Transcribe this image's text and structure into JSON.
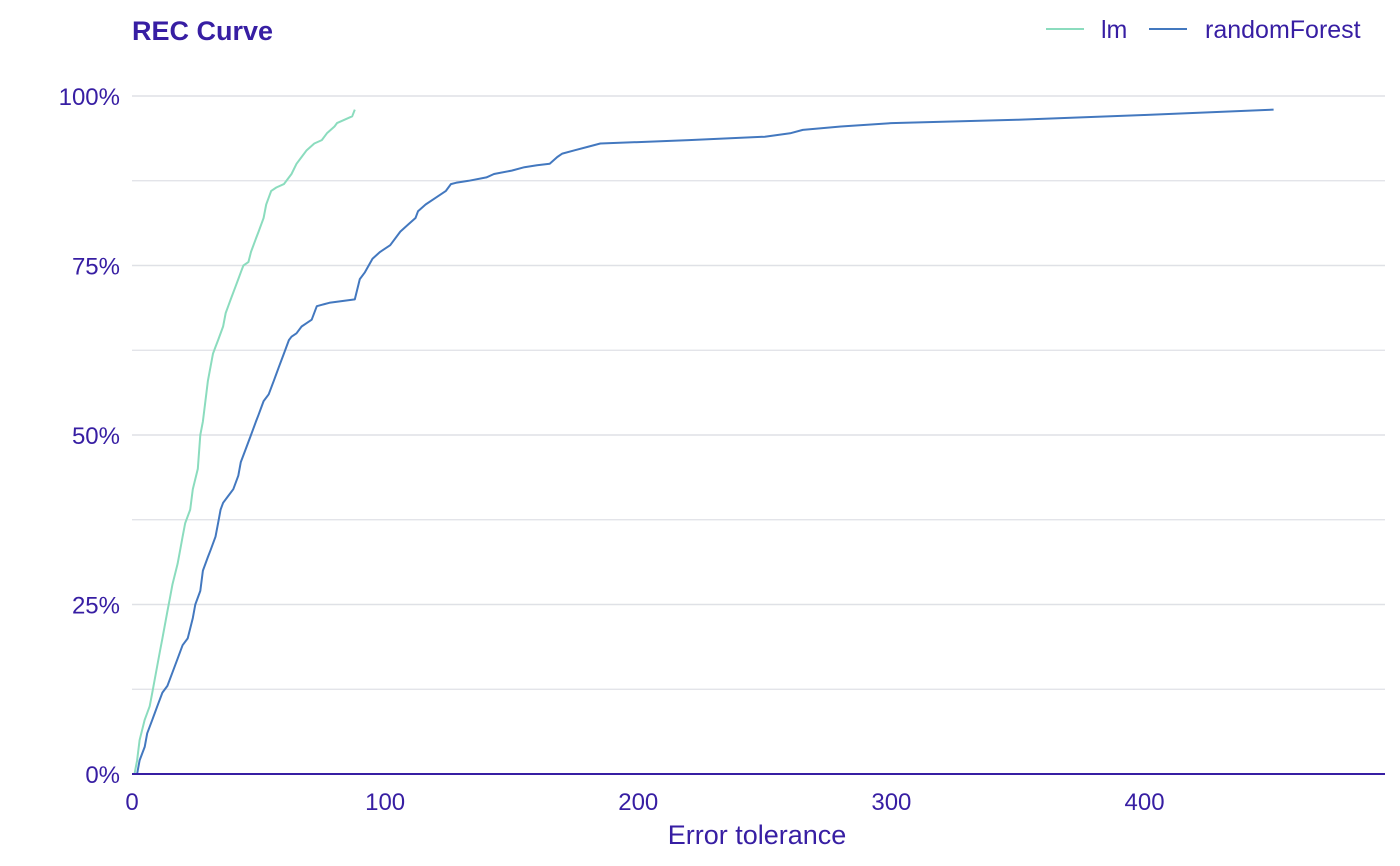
{
  "chart_data": {
    "type": "line",
    "title": "REC Curve",
    "xlabel": "Error tolerance",
    "ylabel": "",
    "xlim": [
      0,
      495
    ],
    "ylim": [
      0,
      1
    ],
    "x_ticks": [
      0,
      100,
      200,
      300,
      400
    ],
    "x_tick_labels": [
      "0",
      "100",
      "200",
      "300",
      "400"
    ],
    "y_ticks": [
      0,
      0.25,
      0.5,
      0.75,
      1
    ],
    "y_tick_labels": [
      "0%",
      "25%",
      "50%",
      "75%",
      "100%"
    ],
    "grid": "horizontal",
    "legend_position": "top-right",
    "colors": {
      "text": "#371ea3",
      "grid": "#dfe1e6",
      "axis": "#371ea3",
      "lm": "#8bdcbe",
      "randomForest": "#4378bf"
    },
    "series": [
      {
        "name": "lm",
        "color": "#8bdcbe",
        "x": [
          1,
          2,
          3,
          5,
          7,
          8,
          10,
          11,
          12,
          14,
          15,
          16,
          18,
          19,
          20,
          21,
          23,
          24,
          26,
          27,
          28,
          29,
          30,
          32,
          33,
          34,
          36,
          37,
          38,
          39,
          41,
          42,
          43,
          44,
          46,
          47,
          49,
          50,
          51,
          52,
          53,
          54,
          55,
          57,
          60,
          63,
          65,
          67,
          69,
          72,
          75,
          77,
          80,
          81,
          84,
          87,
          88
        ],
        "y": [
          0.0,
          0.02,
          0.05,
          0.08,
          0.1,
          0.12,
          0.16,
          0.18,
          0.2,
          0.24,
          0.26,
          0.28,
          0.31,
          0.33,
          0.35,
          0.37,
          0.39,
          0.42,
          0.45,
          0.5,
          0.52,
          0.55,
          0.58,
          0.62,
          0.63,
          0.64,
          0.66,
          0.68,
          0.69,
          0.7,
          0.72,
          0.73,
          0.74,
          0.75,
          0.755,
          0.77,
          0.79,
          0.8,
          0.81,
          0.82,
          0.84,
          0.85,
          0.86,
          0.865,
          0.87,
          0.885,
          0.9,
          0.91,
          0.92,
          0.93,
          0.935,
          0.945,
          0.955,
          0.96,
          0.965,
          0.97,
          0.98
        ]
      },
      {
        "name": "randomForest",
        "color": "#4378bf",
        "x": [
          2,
          3,
          5,
          6,
          8,
          9,
          10,
          12,
          14,
          16,
          18,
          20,
          22,
          24,
          25,
          27,
          28,
          30,
          31,
          33,
          34,
          35,
          36,
          38,
          40,
          42,
          43,
          45,
          47,
          49,
          50,
          51,
          52,
          54,
          56,
          57,
          58,
          60,
          61,
          62,
          63,
          65,
          67,
          69,
          71,
          73,
          75,
          76,
          78,
          88,
          90,
          92,
          95,
          98,
          102,
          106,
          109,
          112,
          113,
          116,
          120,
          124,
          126,
          128,
          133,
          140,
          143,
          150,
          155,
          160,
          165,
          168,
          170,
          175,
          180,
          185,
          200,
          220,
          250,
          260,
          265,
          280,
          300,
          350,
          400,
          451
        ],
        "y": [
          0.0,
          0.02,
          0.04,
          0.06,
          0.08,
          0.09,
          0.1,
          0.12,
          0.13,
          0.15,
          0.17,
          0.19,
          0.2,
          0.23,
          0.25,
          0.27,
          0.3,
          0.32,
          0.33,
          0.35,
          0.37,
          0.39,
          0.4,
          0.41,
          0.42,
          0.44,
          0.46,
          0.48,
          0.5,
          0.52,
          0.53,
          0.54,
          0.55,
          0.56,
          0.58,
          0.59,
          0.6,
          0.62,
          0.63,
          0.64,
          0.645,
          0.65,
          0.66,
          0.665,
          0.67,
          0.69,
          0.692,
          0.693,
          0.695,
          0.7,
          0.73,
          0.74,
          0.76,
          0.77,
          0.78,
          0.8,
          0.81,
          0.82,
          0.83,
          0.84,
          0.85,
          0.86,
          0.87,
          0.872,
          0.875,
          0.88,
          0.885,
          0.89,
          0.895,
          0.898,
          0.9,
          0.91,
          0.915,
          0.92,
          0.925,
          0.93,
          0.932,
          0.935,
          0.94,
          0.945,
          0.95,
          0.955,
          0.96,
          0.965,
          0.972,
          0.98
        ]
      }
    ]
  }
}
